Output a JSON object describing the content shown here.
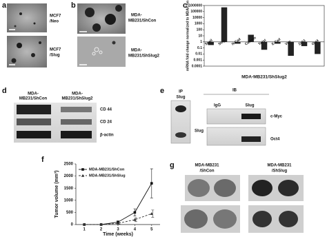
{
  "panel_labels": [
    "a",
    "b",
    "c",
    "d",
    "e",
    "f",
    "g"
  ],
  "panel_a": {
    "labels": [
      [
        "MCF7",
        "/Neo"
      ],
      [
        "MCF7",
        "/Slug"
      ]
    ]
  },
  "panel_b": {
    "labels": [
      [
        "MDA-",
        "MB231/ShCon"
      ],
      [
        "MDA-",
        "MB231/ShSlug2"
      ]
    ]
  },
  "panel_d": {
    "headers": [
      [
        "MDA-",
        "MB231/ShCon"
      ],
      [
        "MDA-",
        "MB231/ShSlug2"
      ]
    ],
    "bands": [
      "CD 44",
      "CD 24",
      "β-actin"
    ]
  },
  "panel_e": {
    "ip": [
      "IP",
      "Slug"
    ],
    "ib": "IB",
    "lanes": [
      "IgG",
      "Slug"
    ],
    "left_band": "Slug",
    "bands": [
      "c-Myc",
      "Oct4"
    ]
  },
  "panel_g": {
    "groups": [
      [
        "MDA-MB231",
        "/ShCon"
      ],
      [
        "MDA-MB231",
        "/ShSlug"
      ]
    ]
  },
  "chart_data": [
    {
      "type": "bar",
      "y_label": "mRNA fold change normalized to MDA/Con",
      "x_label": "MDA-MB231/ShSlug2",
      "categories": [
        "Snail",
        "Slug",
        "N-Cad",
        "Catenin",
        "Twist",
        "E-Cad",
        "Vim",
        "Zeb1",
        "Oct4"
      ],
      "values": [
        0.3,
        500000,
        0.5,
        15,
        0.05,
        0.5,
        0.005,
        0.2,
        0.01
      ],
      "color": "#222222",
      "log_scale": true,
      "ylim": [
        0.0001,
        1000000
      ],
      "yticks": [
        1000000,
        100000,
        10000,
        1000,
        100,
        10,
        1,
        0.1,
        0.01,
        0.001,
        0.0001
      ]
    },
    {
      "type": "line",
      "y_label": "Tumor volume (mm³)",
      "x_label": "Time (weeks)",
      "x": [
        1,
        2,
        3,
        4,
        5
      ],
      "series": [
        {
          "name": "MDA-MB231/ShCon",
          "color": "#111111",
          "dashed": false,
          "marker": "square",
          "values": [
            0,
            0,
            100,
            500,
            1700
          ],
          "errors": [
            0,
            0,
            50,
            150,
            600
          ]
        },
        {
          "name": "MDA-MB231/ShSlug",
          "color": "#333333",
          "dashed": true,
          "marker": "triangle",
          "values": [
            0,
            0,
            50,
            200,
            450
          ],
          "errors": [
            0,
            0,
            30,
            80,
            150
          ]
        }
      ],
      "xlim": [
        0.5,
        5.5
      ],
      "xticks": [
        1,
        2,
        3,
        4,
        5
      ],
      "ylim": [
        0,
        2500
      ],
      "yticks": [
        0,
        500,
        1000,
        1500,
        2000,
        2500
      ],
      "legend": "upper left"
    }
  ]
}
